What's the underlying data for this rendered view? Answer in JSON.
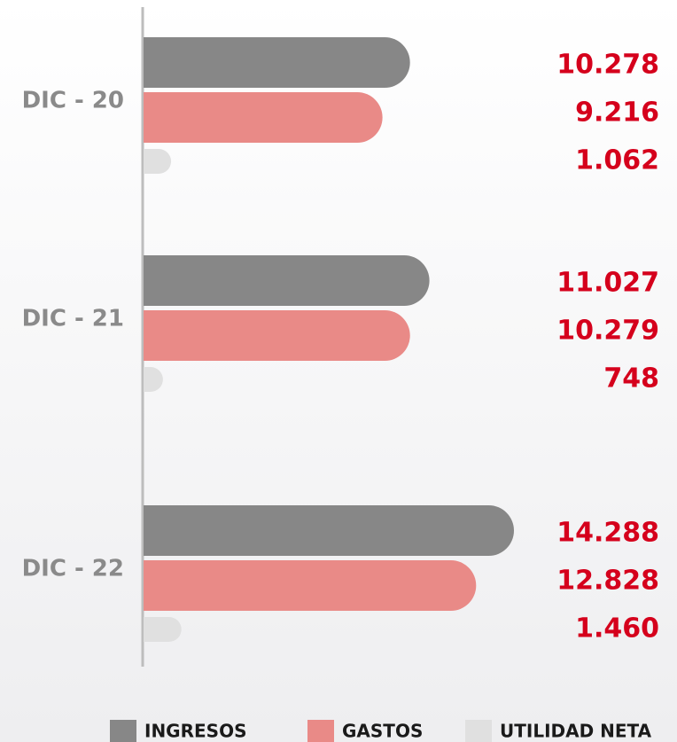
{
  "chart_data": {
    "type": "hbar",
    "categories": [
      "DIC - 20",
      "DIC - 21",
      "DIC - 22"
    ],
    "series": [
      {
        "name": "INGRESOS",
        "color": "#878787",
        "values": [
          10278,
          11027,
          14288
        ],
        "value_labels": [
          "10.278",
          "11.027",
          "14.288"
        ]
      },
      {
        "name": "GASTOS",
        "color": "#e98a87",
        "values": [
          9216,
          10279,
          12828
        ],
        "value_labels": [
          "9.216",
          "10.279",
          "12.828"
        ]
      },
      {
        "name": "UTILIDAD NETA",
        "color": "#e0e0e0",
        "values": [
          1062,
          748,
          1460
        ],
        "value_labels": [
          "1.062",
          "748",
          "1.460"
        ]
      }
    ],
    "value_label_color": "#d5001c"
  }
}
